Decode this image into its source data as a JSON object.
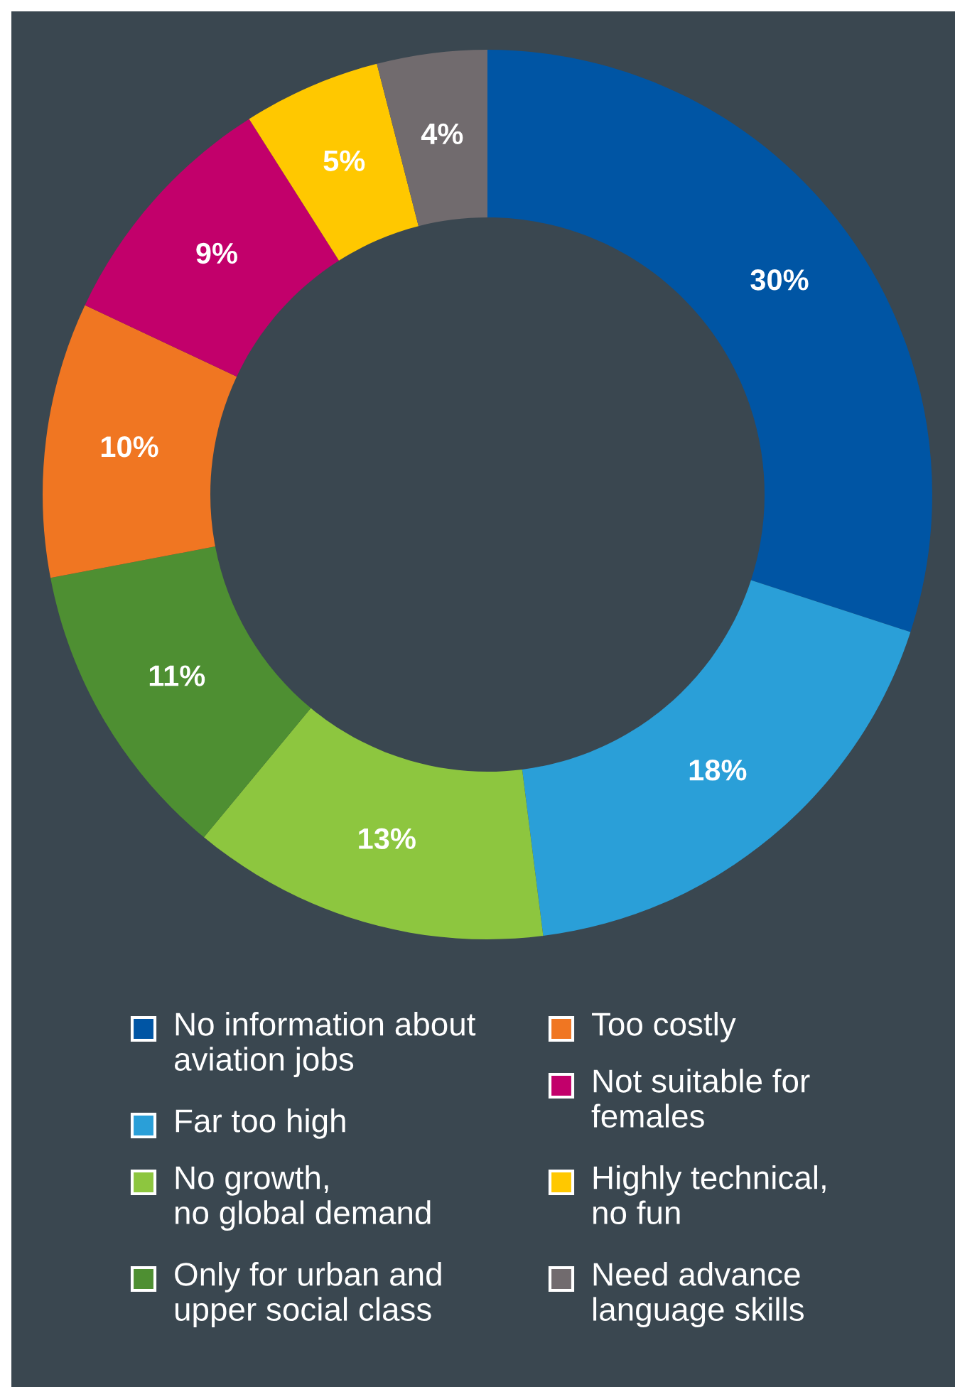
{
  "chart_data": {
    "type": "donut",
    "categories": [
      "No information about\naviation jobs",
      "Far too high",
      "No growth,\nno global demand",
      "Only for urban and\nupper social class",
      "Too costly",
      "Not suitable for\nfemales",
      "Highly technical,\nno fun",
      "Need advance\nlanguage skills"
    ],
    "values": [
      30,
      18,
      13,
      11,
      10,
      9,
      5,
      4
    ],
    "value_labels": [
      "30%",
      "18%",
      "13%",
      "11%",
      "10%",
      "9%",
      "5%",
      "4%"
    ],
    "colors": [
      "#0055a4",
      "#2a9fd8",
      "#8dc63f",
      "#4e8f32",
      "#f07622",
      "#c2006b",
      "#ffc800",
      "#716b6e"
    ],
    "legend": "bottom"
  }
}
